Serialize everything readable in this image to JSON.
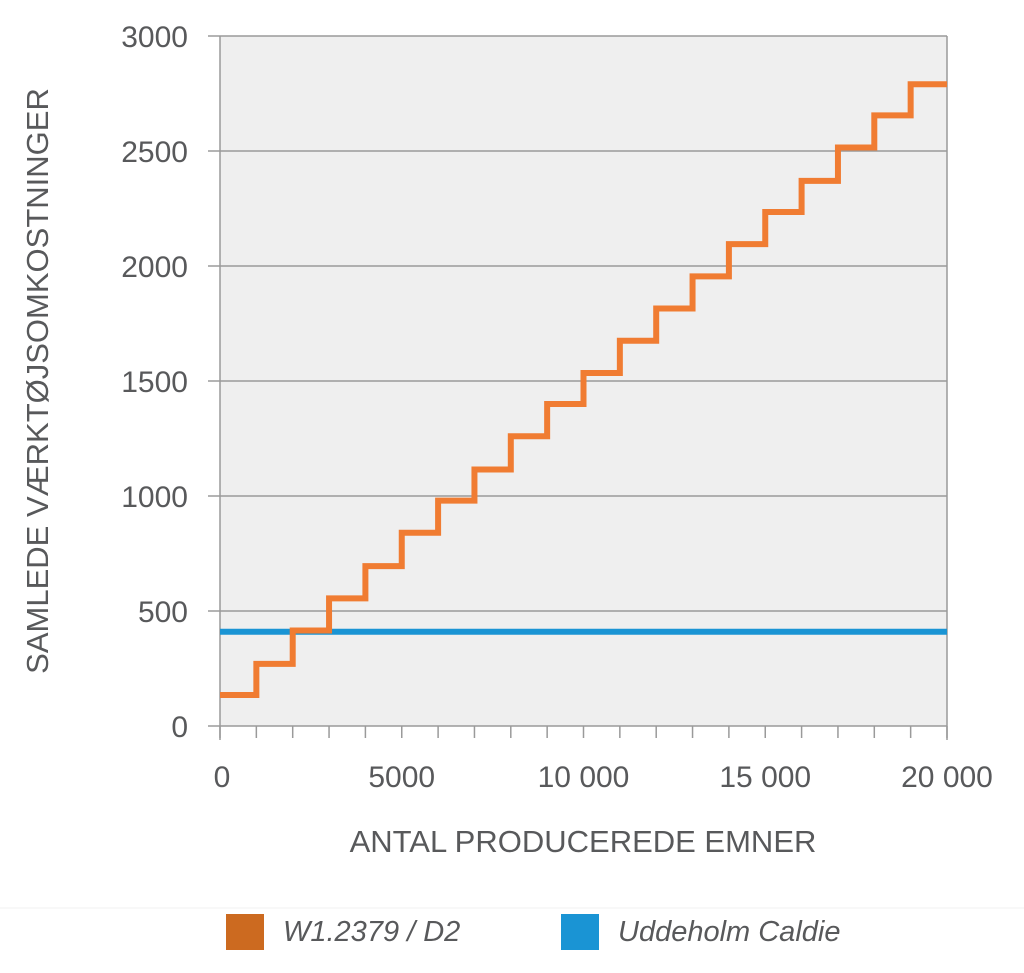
{
  "chart_data": {
    "type": "line",
    "title": "",
    "xlabel": "ANTAL PRODUCEREDE EMNER",
    "ylabel": "SAMLEDE VÆRKTØJSOMKOSTNINGER",
    "xlim": [
      0,
      20000
    ],
    "ylim": [
      0,
      3000
    ],
    "x_ticks": [
      0,
      5000,
      10000,
      15000,
      20000
    ],
    "x_tick_labels": [
      "0",
      "5000",
      "10 000",
      "15 000",
      "20 000"
    ],
    "y_ticks": [
      0,
      500,
      1000,
      1500,
      2000,
      2500,
      3000
    ],
    "y_tick_labels": [
      "0",
      "500",
      "1000",
      "1500",
      "2000",
      "2500",
      "3000"
    ],
    "grid": true,
    "legend_position": "bottom",
    "series": [
      {
        "name": "W1.2379 / D2",
        "color": "#f07c32",
        "legend_color": "#cc6a20",
        "step": true,
        "x": [
          0,
          1000,
          2000,
          3000,
          4000,
          5000,
          6000,
          7000,
          8000,
          9000,
          10000,
          11000,
          12000,
          13000,
          14000,
          15000,
          16000,
          17000,
          18000,
          19000,
          20000
        ],
        "y": [
          135,
          270,
          415,
          555,
          695,
          840,
          980,
          1115,
          1260,
          1400,
          1535,
          1675,
          1815,
          1955,
          2095,
          2235,
          2370,
          2515,
          2655,
          2790,
          2790
        ]
      },
      {
        "name": "Uddeholm Caldie",
        "color": "#1a94d4",
        "legend_color": "#1a94d4",
        "step": false,
        "x": [
          0,
          20000
        ],
        "y": [
          410,
          410
        ]
      }
    ]
  }
}
